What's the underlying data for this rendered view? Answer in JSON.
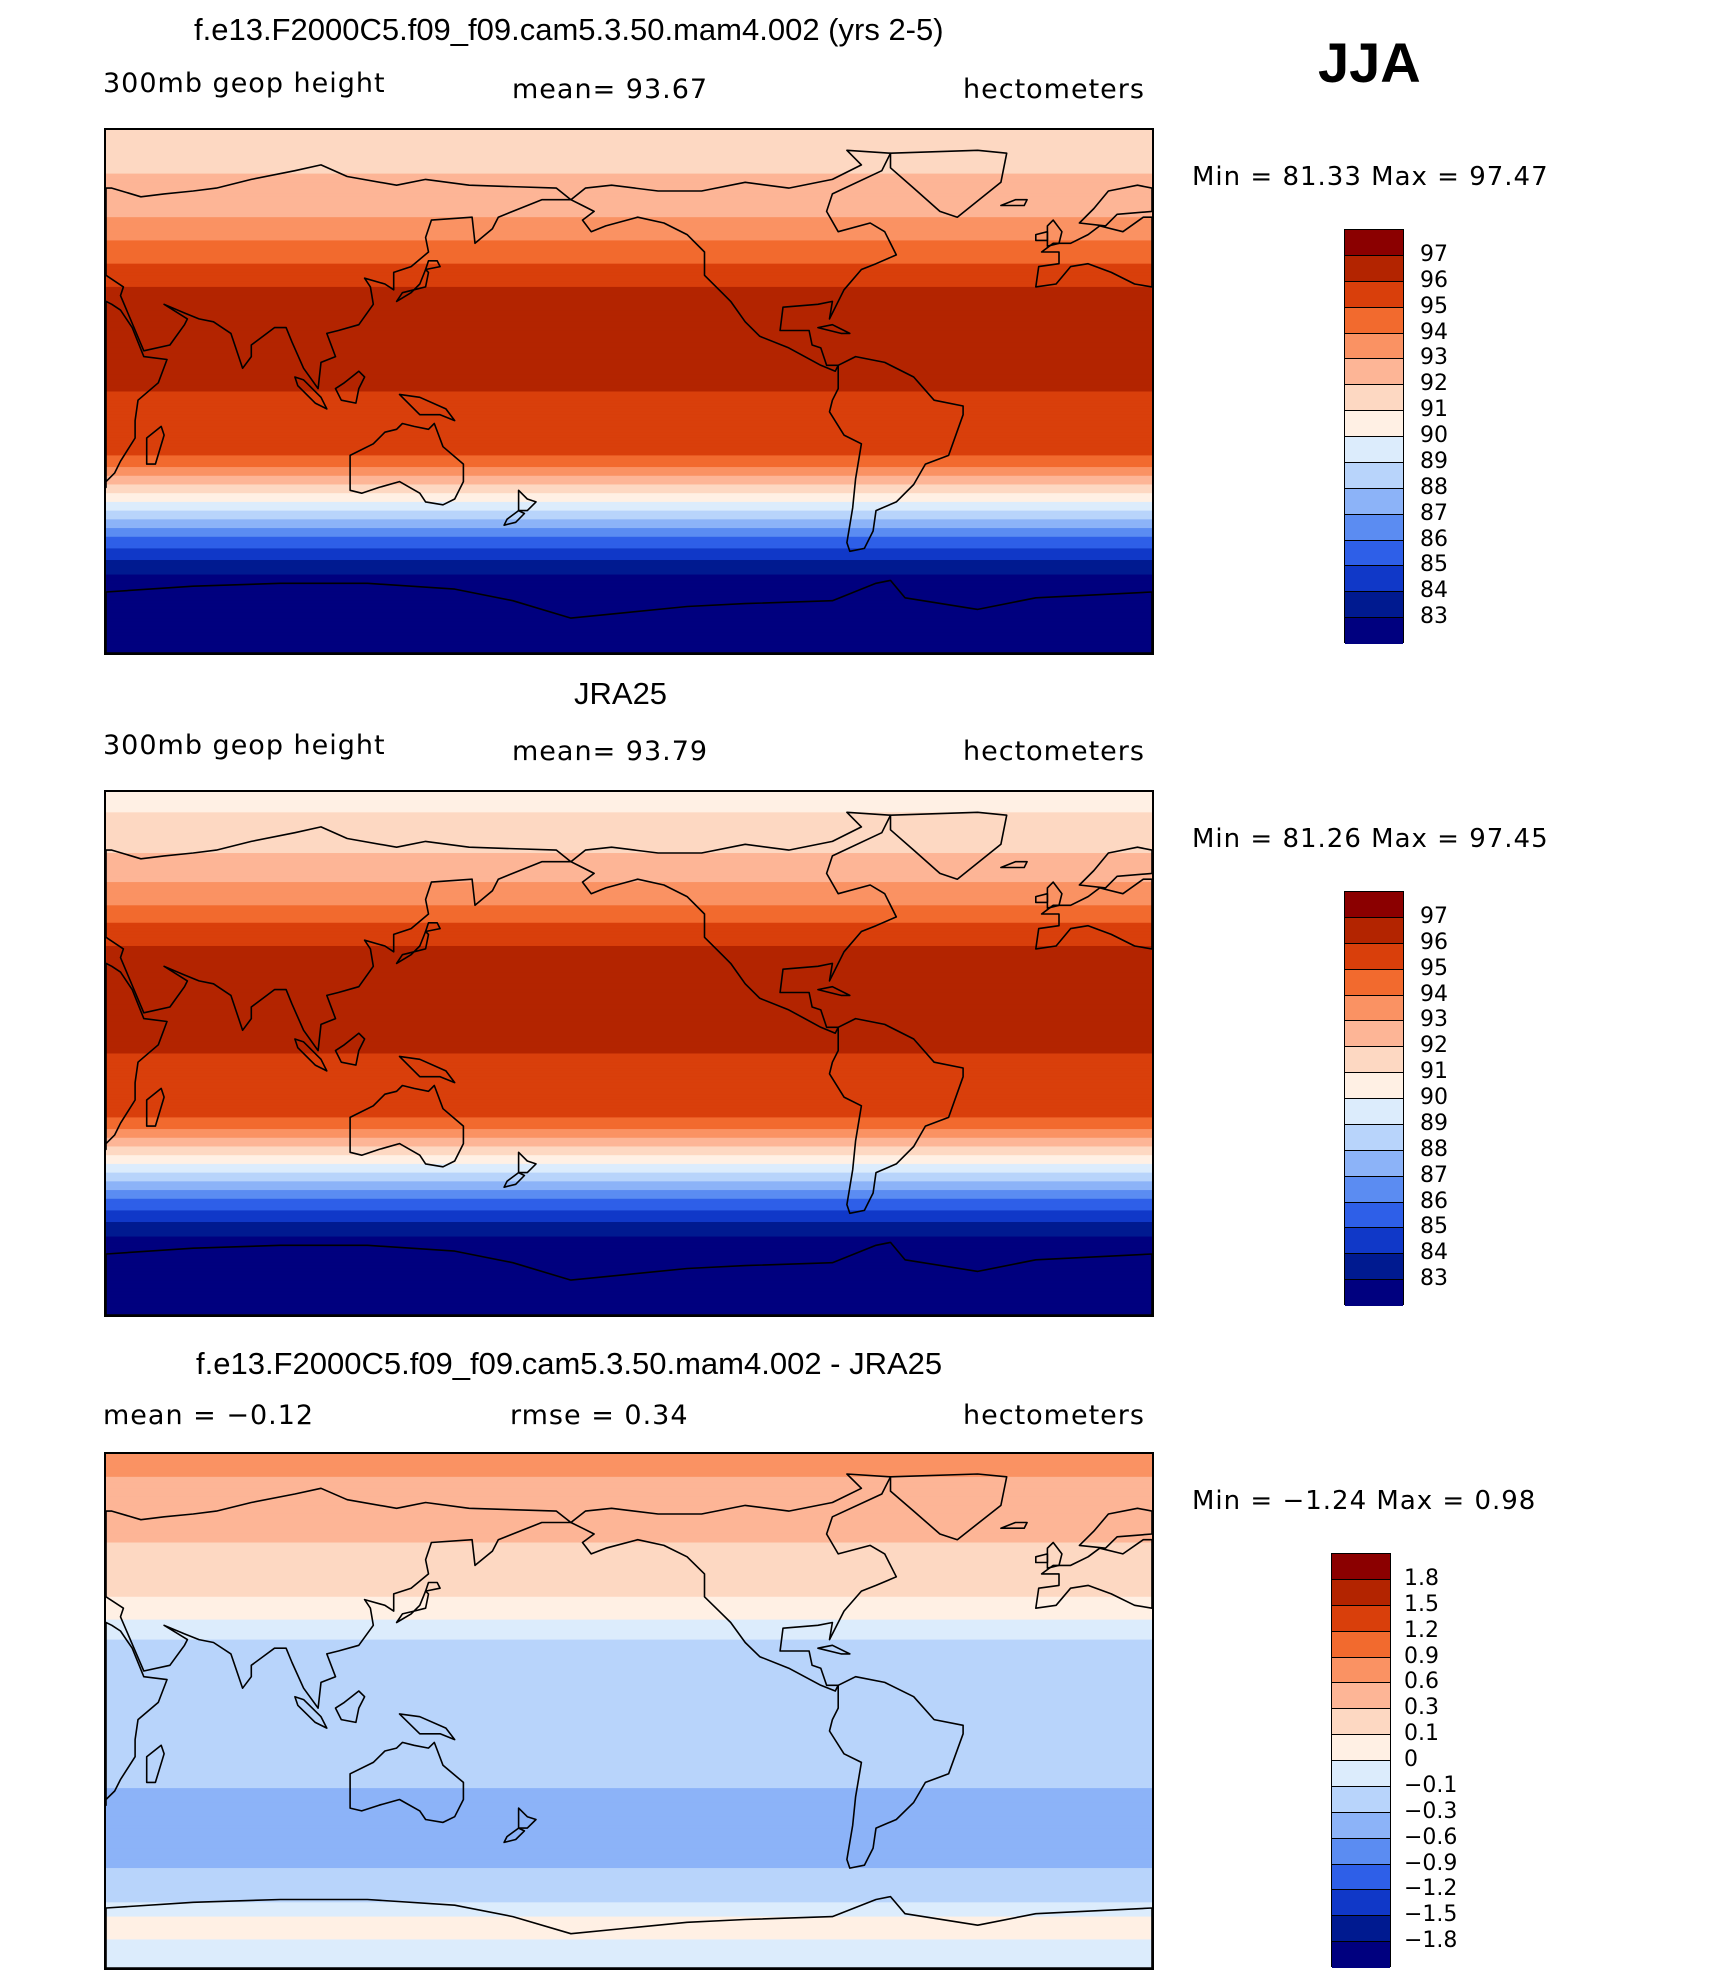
{
  "season": "JJA",
  "panels": [
    {
      "title": "f.e13.F2000C5.f09_f09.cam5.3.50.mam4.002 (yrs 2-5)",
      "left_label": "300mb  geop  height",
      "center_label": "mean=   93.67",
      "right_label": "hectometers",
      "minmax": "Min  =    81.33  Max  =    97.47",
      "legend": {
        "labels": [
          "97",
          "96",
          "95",
          "94",
          "93",
          "92",
          "91",
          "90",
          "89",
          "88",
          "87",
          "86",
          "85",
          "84",
          "83"
        ],
        "colors": [
          "#8b0000",
          "#b32400",
          "#d93f0b",
          "#f26a2e",
          "#fa9263",
          "#fdb596",
          "#fdd8c2",
          "#fff0e4",
          "#dcecfc",
          "#b8d4fb",
          "#8cb3f8",
          "#5b8cf2",
          "#2e5fe8",
          "#1038c8",
          "#001a90",
          "#00007f"
        ]
      },
      "bands": [
        {
          "lat": 90,
          "value": 91.5
        },
        {
          "lat": 75,
          "value": 92.0
        },
        {
          "lat": 60,
          "value": 93.0
        },
        {
          "lat": 50,
          "value": 94.2
        },
        {
          "lat": 42,
          "value": 95.2
        },
        {
          "lat": 32,
          "value": 96.6
        },
        {
          "lat": 25,
          "value": 96.3
        },
        {
          "lat": 0,
          "value": 96.0
        },
        {
          "lat": -15,
          "value": 95.8
        },
        {
          "lat": -22,
          "value": 95.0
        },
        {
          "lat": -28,
          "value": 93.5
        },
        {
          "lat": -35,
          "value": 91.0
        },
        {
          "lat": -42,
          "value": 88.5
        },
        {
          "lat": -50,
          "value": 86.0
        },
        {
          "lat": -58,
          "value": 84.0
        },
        {
          "lat": -66,
          "value": 82.5
        },
        {
          "lat": -90,
          "value": 81.5
        }
      ]
    },
    {
      "title": "JRA25",
      "left_label": "300mb  geop  height",
      "center_label": "mean=   93.79",
      "right_label": "hectometers",
      "minmax": "Min  =    81.26  Max  =    97.45",
      "legend": {
        "labels": [
          "97",
          "96",
          "95",
          "94",
          "93",
          "92",
          "91",
          "90",
          "89",
          "88",
          "87",
          "86",
          "85",
          "84",
          "83"
        ],
        "colors": [
          "#8b0000",
          "#b32400",
          "#d93f0b",
          "#f26a2e",
          "#fa9263",
          "#fdb596",
          "#fdd8c2",
          "#fff0e4",
          "#dcecfc",
          "#b8d4fb",
          "#8cb3f8",
          "#5b8cf2",
          "#2e5fe8",
          "#1038c8",
          "#001a90",
          "#00007f"
        ]
      },
      "bands": [
        {
          "lat": 90,
          "value": 90.5
        },
        {
          "lat": 75,
          "value": 91.5
        },
        {
          "lat": 60,
          "value": 92.8
        },
        {
          "lat": 50,
          "value": 94.2
        },
        {
          "lat": 42,
          "value": 95.4
        },
        {
          "lat": 32,
          "value": 96.7
        },
        {
          "lat": 25,
          "value": 96.4
        },
        {
          "lat": 0,
          "value": 96.0
        },
        {
          "lat": -15,
          "value": 95.8
        },
        {
          "lat": -22,
          "value": 95.0
        },
        {
          "lat": -28,
          "value": 93.5
        },
        {
          "lat": -35,
          "value": 91.0
        },
        {
          "lat": -42,
          "value": 88.5
        },
        {
          "lat": -50,
          "value": 86.0
        },
        {
          "lat": -58,
          "value": 84.0
        },
        {
          "lat": -66,
          "value": 82.5
        },
        {
          "lat": -90,
          "value": 81.5
        }
      ]
    },
    {
      "title": "f.e13.F2000C5.f09_f09.cam5.3.50.mam4.002 - JRA25",
      "left_label": "mean  =    −0.12",
      "center_label": "rmse  =     0.34",
      "right_label": "hectometers",
      "minmax": "Min  =    −1.24  Max  =      0.98",
      "legend": {
        "labels": [
          "1.8",
          "1.5",
          "1.2",
          "0.9",
          "0.6",
          "0.3",
          "0.1",
          "0",
          "−0.1",
          "−0.3",
          "−0.6",
          "−0.9",
          "−1.2",
          "−1.5",
          "−1.8"
        ],
        "colors": [
          "#8b0000",
          "#b32400",
          "#d93f0b",
          "#f26a2e",
          "#fa9263",
          "#fdb596",
          "#fdd8c2",
          "#fff0e4",
          "#dcecfc",
          "#b8d4fb",
          "#8cb3f8",
          "#5b8cf2",
          "#2e5fe8",
          "#1038c8",
          "#001a90",
          "#00007f"
        ]
      },
      "bands": [
        {
          "lat": 90,
          "value": 0.7
        },
        {
          "lat": 70,
          "value": 0.45
        },
        {
          "lat": 55,
          "value": 0.25
        },
        {
          "lat": 45,
          "value": 0.15
        },
        {
          "lat": 35,
          "value": 0.05
        },
        {
          "lat": 28,
          "value": -0.08
        },
        {
          "lat": 10,
          "value": -0.2
        },
        {
          "lat": -20,
          "value": -0.2
        },
        {
          "lat": -35,
          "value": -0.4
        },
        {
          "lat": -45,
          "value": -0.55
        },
        {
          "lat": -55,
          "value": -0.3
        },
        {
          "lat": -65,
          "value": -0.15
        },
        {
          "lat": -75,
          "value": 0.05
        },
        {
          "lat": -90,
          "value": -0.1
        }
      ]
    }
  ]
}
